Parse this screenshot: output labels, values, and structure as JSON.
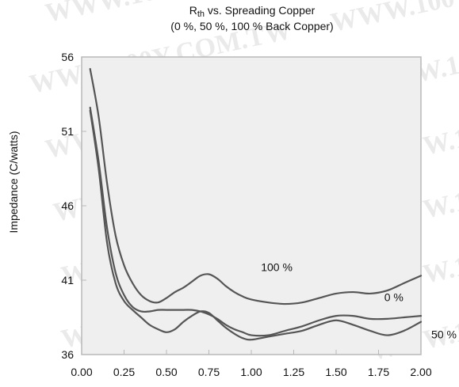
{
  "watermark": "WWW.100Y.COM.TW",
  "chart_data": {
    "type": "line",
    "title": {
      "main": "R",
      "subscript": "th",
      "rest": " vs. Spreading Copper",
      "line2": "(0 %, 50 %, 100 % Back Copper)"
    },
    "xlabel": "",
    "ylabel": "Impedance (C/watts)",
    "xlim": [
      0.0,
      2.0
    ],
    "ylim": [
      36,
      56
    ],
    "xticks": [
      "0.00",
      "0.25",
      "0.50",
      "0.75",
      "1.00",
      "1.25",
      "1.50",
      "1.75",
      "2.00"
    ],
    "yticks": [
      "36",
      "41",
      "46",
      "51",
      "56"
    ],
    "grid": false,
    "colors": {
      "line": "#555555",
      "frame": "#b8b8b8",
      "plot_bg": "#efefef",
      "text": "#111111"
    },
    "series": [
      {
        "name": "100 %",
        "x": [
          0.05,
          0.1,
          0.15,
          0.2,
          0.25,
          0.3,
          0.35,
          0.4,
          0.45,
          0.5,
          0.55,
          0.6,
          0.65,
          0.7,
          0.75,
          0.8,
          0.85,
          0.9,
          0.95,
          1.0,
          1.1,
          1.2,
          1.3,
          1.4,
          1.5,
          1.6,
          1.7,
          1.8,
          1.9,
          2.0
        ],
        "values": [
          55.2,
          52.0,
          47.5,
          44.0,
          42.0,
          40.8,
          40.0,
          39.6,
          39.5,
          39.8,
          40.2,
          40.5,
          40.9,
          41.3,
          41.4,
          41.1,
          40.6,
          40.2,
          39.9,
          39.7,
          39.5,
          39.4,
          39.5,
          39.8,
          40.1,
          40.2,
          40.1,
          40.3,
          40.8,
          41.3
        ]
      },
      {
        "name": "0 %",
        "x": [
          0.05,
          0.1,
          0.15,
          0.2,
          0.25,
          0.3,
          0.35,
          0.4,
          0.45,
          0.5,
          0.55,
          0.6,
          0.65,
          0.7,
          0.75,
          0.8,
          0.85,
          0.9,
          0.95,
          1.0,
          1.1,
          1.2,
          1.3,
          1.4,
          1.5,
          1.6,
          1.7,
          1.8,
          1.9,
          2.0
        ],
        "values": [
          52.6,
          49.0,
          44.5,
          41.5,
          40.0,
          39.2,
          38.9,
          38.9,
          39.0,
          39.0,
          39.0,
          39.0,
          39.0,
          38.9,
          38.7,
          38.4,
          38.0,
          37.7,
          37.5,
          37.3,
          37.3,
          37.6,
          37.9,
          38.3,
          38.6,
          38.6,
          38.4,
          38.4,
          38.5,
          38.6
        ]
      },
      {
        "name": "50 %",
        "x": [
          0.05,
          0.1,
          0.15,
          0.2,
          0.25,
          0.3,
          0.35,
          0.4,
          0.45,
          0.5,
          0.55,
          0.6,
          0.65,
          0.7,
          0.75,
          0.8,
          0.85,
          0.9,
          0.95,
          1.0,
          1.1,
          1.2,
          1.3,
          1.4,
          1.5,
          1.6,
          1.7,
          1.8,
          1.9,
          2.0
        ],
        "values": [
          52.4,
          48.5,
          43.5,
          40.8,
          39.6,
          39.0,
          38.5,
          38.0,
          37.7,
          37.5,
          37.7,
          38.2,
          38.6,
          38.9,
          38.8,
          38.3,
          37.8,
          37.4,
          37.1,
          37.0,
          37.2,
          37.4,
          37.6,
          38.0,
          38.3,
          38.0,
          37.6,
          37.3,
          37.6,
          38.2
        ]
      }
    ],
    "annotations": [
      {
        "text": "100 %",
        "series": "100 %"
      },
      {
        "text": "0 %",
        "series": "0 %"
      },
      {
        "text": "50 %",
        "series": "50 %"
      }
    ]
  }
}
